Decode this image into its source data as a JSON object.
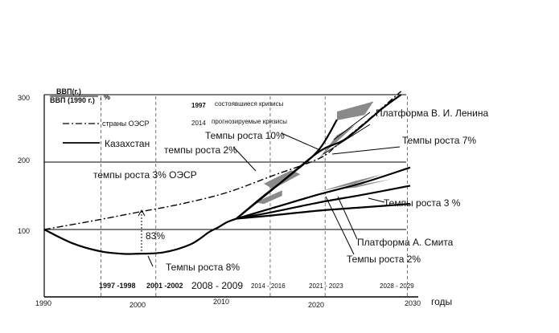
{
  "chart_data": {
    "type": "line",
    "ylabel_numerator": "ВВП(г.)",
    "ylabel_denominator": "ВВП (1990 г.)",
    "ylabel_unit": ", %",
    "xlabel": "годы",
    "x_ticks": [
      "1990",
      "2000",
      "2010",
      "2020",
      "2030"
    ],
    "y_ticks": [
      "100",
      "200",
      "300"
    ],
    "xlim": [
      1990,
      2030
    ],
    "ylim": [
      0,
      300
    ],
    "grid": true,
    "legend": {
      "position": "top-left",
      "items": [
        {
          "label": "страны ОЭСР",
          "style": "dash-dot"
        },
        {
          "label": "Казахстан",
          "style": "solid"
        }
      ],
      "notes": [
        {
          "year": "1997",
          "label": "состоявшиеся кризисы"
        },
        {
          "year": "2014",
          "label": "прогнозируемые кризисы"
        }
      ]
    },
    "series": [
      {
        "name": "страны ОЭСР",
        "style": "dash-dot",
        "x": [
          1990,
          1995,
          2000,
          2005,
          2010,
          2015,
          2020,
          2022,
          2025,
          2029
        ],
        "y": [
          100,
          112,
          125,
          138,
          155,
          180,
          205,
          225,
          258,
          305
        ]
      },
      {
        "name": "Казахстан",
        "style": "solid",
        "x": [
          1990,
          1993,
          1996,
          1998.5,
          2000,
          2003,
          2006,
          2008,
          2009,
          2010,
          2011
        ],
        "y": [
          100,
          80,
          68,
          64,
          64,
          66,
          78,
          96,
          103,
          111,
          116
        ]
      },
      {
        "style": "solid",
        "x": [
          2011,
          2014,
          2017,
          2020,
          2022
        ],
        "y": [
          116,
          150,
          182,
          218,
          263
        ]
      },
      {
        "style": "solid",
        "x": [
          2011,
          2015,
          2020,
          2023,
          2027,
          2029
        ],
        "y": [
          116,
          160,
          215,
          235,
          280,
          300
        ]
      },
      {
        "style": "solid",
        "x": [
          2011,
          2015,
          2020,
          2025,
          2030
        ],
        "y": [
          116,
          132,
          152,
          170,
          192
        ]
      },
      {
        "style": "solid",
        "x": [
          2011,
          2015,
          2020,
          2025,
          2030
        ],
        "y": [
          116,
          126,
          140,
          152,
          165
        ]
      },
      {
        "style": "solid",
        "x": [
          2011,
          2015,
          2020,
          2025,
          2030
        ],
        "y": [
          116,
          121,
          128,
          133,
          138
        ]
      }
    ],
    "vertical_markers": [
      1996.2,
      2002.2,
      2014.7,
      2020.7,
      2029.7
    ],
    "periods": [
      "1997 -1998",
      "2001 -2002",
      "2008 - 2009",
      "2014 - 2016",
      "2021 - 2023",
      "2028 - 2029"
    ],
    "annotations": {
      "growth_10": "Темпы роста 10%",
      "growth_2_upper": "темпы роста  2%",
      "oecd_3": "темпы роста 3% ОЭСР",
      "growth_8": "Темпы роста 8%",
      "pct_83": "83%",
      "growth_7": "Темпы роста  7%",
      "growth_3": "Темпы роста 3 %",
      "growth_2_lower": "Темпы роста 2%",
      "lenin": "Платформа В. И. Ленина",
      "smith": "Платформа А. Смита"
    }
  }
}
